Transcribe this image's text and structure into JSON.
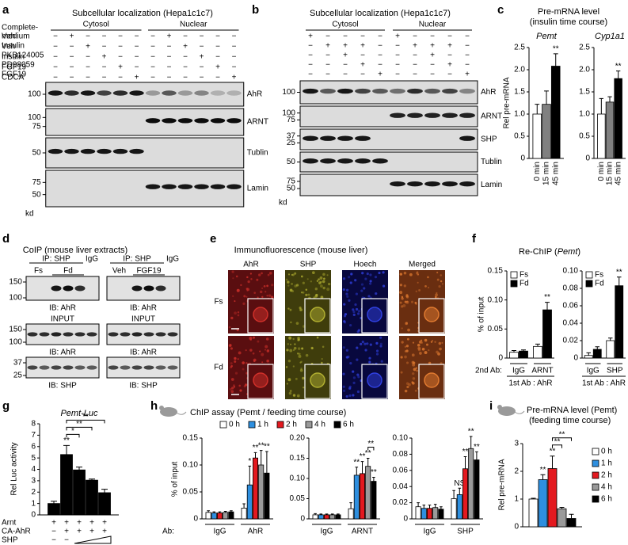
{
  "a": {
    "letter": "a",
    "title": "Subcellular localization (Hepa1c1c7)",
    "groups": [
      "Cytosol",
      "Nuclear"
    ],
    "rows": [
      {
        "label": [
          "Complete-",
          "medium"
        ],
        "signs": [
          "−",
          "+",
          "−",
          "−",
          "−",
          "−",
          "−",
          "+",
          "−",
          "−",
          "−",
          "−"
        ]
      },
      {
        "label": [
          "Veh"
        ],
        "signs": [
          "−",
          "−",
          "+",
          "−",
          "−",
          "−",
          "−",
          "−",
          "+",
          "−",
          "−",
          "−"
        ]
      },
      {
        "label": [
          "Insulin"
        ],
        "signs": [
          "−",
          "−",
          "−",
          "+",
          "−",
          "−",
          "−",
          "−",
          "−",
          "+",
          "−",
          "−"
        ]
      },
      {
        "label": [
          "FGF19"
        ],
        "signs": [
          "−",
          "−",
          "−",
          "−",
          "+",
          "−",
          "−",
          "−",
          "−",
          "−",
          "+",
          "−"
        ]
      },
      {
        "label": [
          "CDCA"
        ],
        "signs": [
          "−",
          "−",
          "−",
          "−",
          "−",
          "+",
          "−",
          "−",
          "−",
          "−",
          "−",
          "+"
        ]
      }
    ],
    "blots": [
      {
        "label": "AhR",
        "markers": [
          "100"
        ]
      },
      {
        "label": "ARNT",
        "markers": [
          "100",
          "75"
        ]
      },
      {
        "label": "Tublin",
        "markers": [
          "50"
        ]
      },
      {
        "label": "Lamin",
        "markers": [
          "75",
          "50"
        ]
      }
    ],
    "unit": "kd"
  },
  "b": {
    "letter": "b",
    "title": "Subcellular localization (Hepa1c1c7)",
    "groups": [
      "Cytosol",
      "Nuclear"
    ],
    "rows": [
      {
        "label": [
          "Veh"
        ],
        "signs": [
          "+",
          "−",
          "−",
          "−",
          "−",
          "+",
          "−",
          "−",
          "−",
          "−"
        ]
      },
      {
        "label": [
          "Insulin"
        ],
        "signs": [
          "−",
          "+",
          "+",
          "+",
          "−",
          "−",
          "+",
          "+",
          "+",
          "−"
        ]
      },
      {
        "label": [
          "PKB124005"
        ],
        "signs": [
          "−",
          "−",
          "+",
          "−",
          "−",
          "−",
          "−",
          "+",
          "−",
          "−"
        ]
      },
      {
        "label": [
          "PD98059"
        ],
        "signs": [
          "−",
          "−",
          "−",
          "+",
          "−",
          "−",
          "−",
          "−",
          "+",
          "−"
        ]
      },
      {
        "label": [
          "FGF19"
        ],
        "signs": [
          "−",
          "−",
          "−",
          "−",
          "+",
          "−",
          "−",
          "−",
          "−",
          "+"
        ]
      }
    ],
    "blots": [
      {
        "label": "AhR",
        "markers": [
          "100"
        ]
      },
      {
        "label": "ARNT",
        "markers": [
          "100",
          "75"
        ]
      },
      {
        "label": "SHP",
        "markers": [
          "37",
          "25"
        ]
      },
      {
        "label": "Tublin",
        "markers": [
          "50"
        ]
      },
      {
        "label": "Lamin",
        "markers": [
          "75",
          "50"
        ]
      }
    ],
    "unit": "kd"
  },
  "c": {
    "letter": "c",
    "title": [
      "Pre-mRNA level",
      "(insulin time course)"
    ],
    "ylabel": "Rel pre-mRNA",
    "colors": [
      "#ffffff",
      "#808080",
      "#000000"
    ],
    "charts": [
      {
        "type": "bar",
        "title": "Pemt",
        "ylim": [
          0,
          2.5
        ],
        "yticks": [
          0,
          0.5,
          {
            "value": 1,
            "label": "1.0"
          },
          1.5,
          {
            "value": 2,
            "label": "2.0"
          },
          2.5
        ],
        "bar_labels": [
          "0 min",
          "15 min",
          "45 min"
        ],
        "values": [
          [
            1.0,
            1.22,
            2.08
          ]
        ],
        "errors": [
          [
            0.22,
            0.3,
            0.28
          ]
        ],
        "sig": [
          [
            null,
            null,
            "**"
          ]
        ]
      },
      {
        "type": "bar",
        "title": "Cyp1a1",
        "ylim": [
          0,
          2.5
        ],
        "yticks": [
          0,
          0.5,
          {
            "value": 1,
            "label": "1.0"
          },
          1.5,
          {
            "value": 2,
            "label": "2.0"
          },
          2.5
        ],
        "bar_labels": [
          "0 min",
          "15 min",
          "45 min"
        ],
        "values": [
          [
            1.0,
            1.27,
            1.8
          ]
        ],
        "errors": [
          [
            0.35,
            0.12,
            0.17
          ]
        ],
        "sig": [
          [
            null,
            null,
            "**"
          ]
        ]
      }
    ]
  },
  "d": {
    "letter": "d",
    "title": "CoIP (mouse liver extracts)",
    "boxes": [
      {
        "ip": "IP: SHP",
        "igg": "IgG",
        "conditions": [
          "Fs",
          "Fd"
        ],
        "input": "INPUT",
        "ib": [
          "IB: AhR",
          "IB: AhR",
          "IB: SHP"
        ]
      },
      {
        "ip": "IP: SHP",
        "igg": "IgG",
        "conditions": [
          "Veh",
          "FGF19"
        ],
        "input": "INPUT",
        "ib": [
          "IB: AhR",
          "IB: AhR",
          "IB: SHP"
        ]
      }
    ],
    "markers": [
      [
        "150",
        "100"
      ],
      [
        "150",
        "100"
      ],
      [
        "37",
        "25"
      ]
    ]
  },
  "e": {
    "letter": "e",
    "title": "Immunofluorescence (mouse liver)",
    "columns": [
      "AhR",
      "SHP",
      "Hoech",
      "Merged"
    ],
    "rows": [
      "Fs",
      "Fd"
    ]
  },
  "f": {
    "letter": "f",
    "title": [
      "Re-ChIP (",
      "Pemt",
      ")"
    ],
    "ylabel": "% of input",
    "second_ab": "2nd Ab:",
    "charts": [
      {
        "type": "bar",
        "ylim": [
          0,
          0.15
        ],
        "yticks": [
          0,
          0.05,
          {
            "value": 0.1,
            "label": "0.10"
          },
          0.15
        ],
        "series": [
          {
            "name": "Fs",
            "color": "#ffffff"
          },
          {
            "name": "Fd",
            "color": "#000000"
          }
        ],
        "categories": [
          "IgG",
          "ARNT"
        ],
        "values": [
          [
            0.01,
            0.012
          ],
          [
            0.02,
            0.083
          ]
        ],
        "errors": [
          [
            0.003,
            0.002
          ],
          [
            0.004,
            0.013
          ]
        ],
        "sig": [
          [
            null,
            null
          ],
          [
            null,
            "**"
          ]
        ],
        "first_ab": "1st Ab : AhR"
      },
      {
        "type": "bar",
        "ylim": [
          0,
          0.1
        ],
        "yticks": [
          0,
          0.02,
          0.04,
          0.06,
          0.08,
          {
            "value": 0.1,
            "label": "0.10"
          }
        ],
        "series": [
          {
            "name": "Fs",
            "color": "#ffffff"
          },
          {
            "name": "Fd",
            "color": "#000000"
          }
        ],
        "categories": [
          "IgG",
          "SHP"
        ],
        "values": [
          [
            0.003,
            0.01
          ],
          [
            0.02,
            0.083
          ]
        ],
        "errors": [
          [
            0.003,
            0.003
          ],
          [
            0.003,
            0.01
          ]
        ],
        "sig": [
          [
            null,
            null
          ],
          [
            null,
            "**"
          ]
        ],
        "first_ab": "1st Ab : AhR"
      }
    ]
  },
  "g": {
    "letter": "g",
    "title": "Pemt-Luc",
    "chart": {
      "type": "bar",
      "ylabel": "Rel Luc activity",
      "ylim": [
        0,
        8
      ],
      "yticks": [
        0,
        1,
        2,
        3,
        4,
        5,
        6,
        7,
        8
      ],
      "color": "#000000",
      "values": [
        [
          1.0,
          5.3,
          3.95,
          3.05,
          1.95
        ]
      ],
      "errors": [
        [
          0.2,
          0.8,
          0.25,
          0.1,
          0.3
        ]
      ],
      "sig": [
        [
          null,
          "**",
          null,
          null,
          null
        ]
      ],
      "brackets": [
        {
          "cat": 0,
          "from": 1,
          "to": 2,
          "label": "*"
        },
        {
          "cat": 0,
          "from": 1,
          "to": 3,
          "label": "**"
        },
        {
          "cat": 0,
          "from": 1,
          "to": 4,
          "label": "**"
        }
      ]
    },
    "rows": [
      {
        "label": "Arnt",
        "signs": [
          "+",
          "+",
          "+",
          "+",
          "+"
        ]
      },
      {
        "label": "CA-AhR",
        "signs": [
          "−",
          "+",
          "+",
          "+",
          "+"
        ]
      },
      {
        "label": "SHP",
        "signs": [
          "−",
          "−"
        ]
      }
    ]
  },
  "h": {
    "letter": "h",
    "title": "ChIP assay (Pemt / feeding time course)",
    "ylabel": "% of input",
    "ab": "Ab:",
    "series": [
      {
        "name": "0 h",
        "color": "#ffffff"
      },
      {
        "name": "1 h",
        "color": "#2e8fdf"
      },
      {
        "name": "2 h",
        "color": "#e3191f"
      },
      {
        "name": "4 h",
        "color": "#9a9a9a"
      },
      {
        "name": "6 h",
        "color": "#000000"
      }
    ],
    "charts": [
      {
        "type": "bar",
        "ylim": [
          0,
          0.15
        ],
        "yticks": [
          0,
          0.05,
          {
            "value": 0.1,
            "label": "0.10"
          },
          0.15
        ],
        "categories": [
          "IgG",
          "AhR"
        ],
        "values": [
          [
            0.012,
            0.011,
            0.011,
            0.012,
            0.013
          ],
          [
            0.02,
            0.063,
            0.113,
            0.1,
            0.085
          ]
        ],
        "errors": [
          [
            0.003,
            0.002,
            0.002,
            0.002,
            0.002
          ],
          [
            0.008,
            0.035,
            0.01,
            0.027,
            0.04
          ]
        ],
        "sig": [
          [
            null,
            null,
            null,
            null,
            null
          ],
          [
            null,
            "*",
            "**",
            "**",
            "**"
          ]
        ]
      },
      {
        "type": "bar",
        "ylim": [
          0,
          0.2
        ],
        "yticks": [
          0,
          0.05,
          {
            "value": 0.1,
            "label": "0.10"
          },
          0.15,
          {
            "value": 0.2,
            "label": "0.20"
          }
        ],
        "categories": [
          "IgG",
          "ARNT"
        ],
        "values": [
          [
            0.01,
            0.01,
            0.01,
            0.01,
            0.01
          ],
          [
            0.025,
            0.108,
            0.112,
            0.13,
            0.093
          ]
        ],
        "errors": [
          [
            0.003,
            0.002,
            0.002,
            0.002,
            0.002
          ],
          [
            0.015,
            0.02,
            0.03,
            0.02,
            0.01
          ]
        ],
        "sig": [
          [
            null,
            null,
            null,
            null,
            null
          ],
          [
            null,
            "**",
            "**",
            "**",
            "**"
          ]
        ],
        "brackets": [
          {
            "cat": 1,
            "from": 3,
            "to": 4,
            "label": "**"
          }
        ]
      },
      {
        "type": "bar",
        "ylim": [
          0,
          0.1
        ],
        "yticks": [
          0,
          0.02,
          0.04,
          0.06,
          0.08,
          {
            "value": 0.1,
            "label": "0.10"
          }
        ],
        "categories": [
          "IgG",
          "SHP"
        ],
        "values": [
          [
            0.015,
            0.013,
            0.013,
            0.014,
            0.012
          ],
          [
            0.025,
            0.03,
            0.062,
            0.087,
            0.073
          ]
        ],
        "errors": [
          [
            0.005,
            0.004,
            0.004,
            0.004,
            0.003
          ],
          [
            0.01,
            0.008,
            0.015,
            0.015,
            0.01
          ]
        ],
        "sig": [
          [
            null,
            null,
            null,
            null,
            null
          ],
          [
            null,
            "NS",
            "**",
            "**",
            "**"
          ]
        ]
      }
    ]
  },
  "i": {
    "letter": "i",
    "title": "Pre-mRNA level (Pemt)",
    "subtitle": "(feeding time course)",
    "series": [
      {
        "name": "0 h",
        "color": "#ffffff"
      },
      {
        "name": "1 h",
        "color": "#2e8fdf"
      },
      {
        "name": "2 h",
        "color": "#e3191f"
      },
      {
        "name": "4 h",
        "color": "#9a9a9a"
      },
      {
        "name": "6 h",
        "color": "#000000"
      }
    ],
    "chart": {
      "type": "bar",
      "ylabel": "Rel pre-mRNA",
      "ylim": [
        0,
        3
      ],
      "yticks": [
        0,
        1,
        2,
        3
      ],
      "values": [
        [
          1.0,
          1.7,
          2.1,
          0.65,
          0.3
        ]
      ],
      "errors": [
        [
          0.03,
          0.18,
          0.45,
          0.05,
          0.15
        ]
      ],
      "sig": [
        [
          null,
          "**",
          "**",
          null,
          null
        ]
      ],
      "brackets": [
        {
          "cat": 0,
          "from": 2,
          "to": 3,
          "label": "**"
        },
        {
          "cat": 0,
          "from": 2,
          "to": 4,
          "label": "**"
        }
      ]
    }
  }
}
